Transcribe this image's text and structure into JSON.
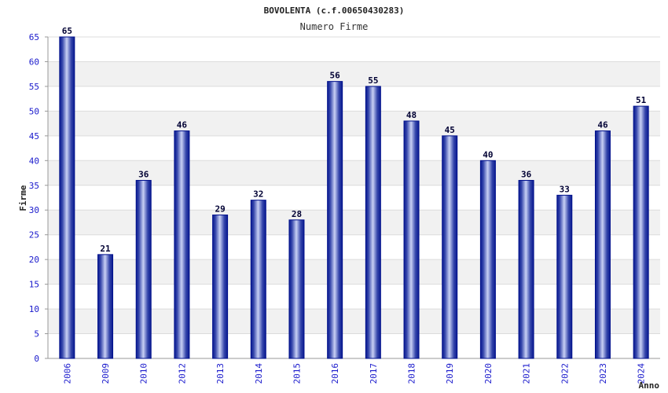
{
  "chart_data": {
    "type": "bar",
    "title": "BOVOLENTA (c.f.00650430283)",
    "subtitle": "Numero Firme",
    "xlabel": "Anno",
    "ylabel": "Firme",
    "categories": [
      "2006",
      "2009",
      "2010",
      "2012",
      "2013",
      "2014",
      "2015",
      "2016",
      "2017",
      "2018",
      "2019",
      "2020",
      "2021",
      "2022",
      "2023",
      "2024"
    ],
    "values": [
      65,
      21,
      36,
      46,
      29,
      32,
      28,
      56,
      55,
      48,
      45,
      40,
      36,
      33,
      46,
      51
    ],
    "ylim": [
      0,
      65
    ],
    "yticks": [
      0,
      5,
      10,
      15,
      20,
      25,
      30,
      35,
      40,
      45,
      50,
      55,
      60,
      65
    ],
    "grid": true,
    "legend": "none",
    "colors": {
      "bar_edge": "#00108c",
      "bar_dark": "#0a1a90",
      "bar_mid": "#5a6ac8",
      "bar_light": "#c8d0f4",
      "band": "#f1f1f1",
      "gridline": "#dcdcdc",
      "tick_text": "#1a1acc",
      "label_text": "#000033"
    }
  }
}
